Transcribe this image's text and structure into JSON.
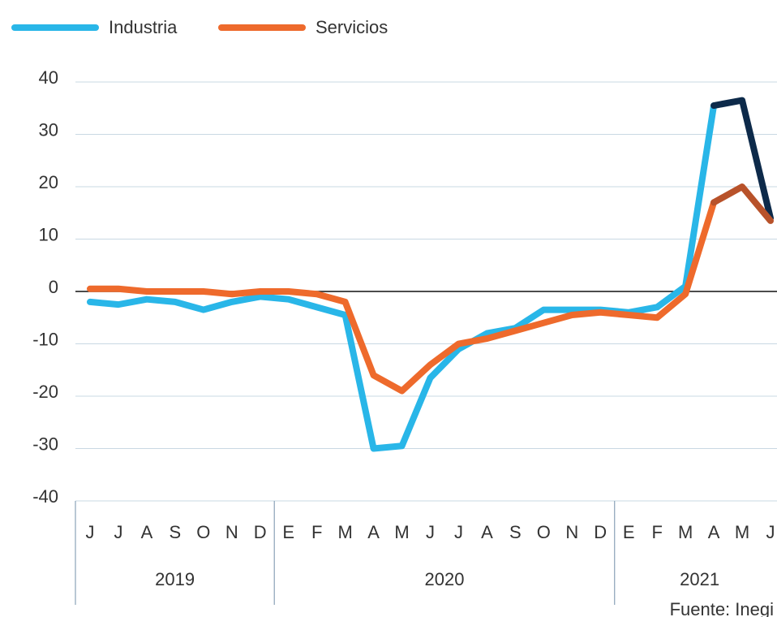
{
  "chart_data": {
    "type": "line",
    "categories": [
      "J",
      "J",
      "A",
      "S",
      "O",
      "N",
      "D",
      "E",
      "F",
      "M",
      "A",
      "M",
      "J",
      "J",
      "A",
      "S",
      "O",
      "N",
      "D",
      "E",
      "F",
      "M",
      "A",
      "M",
      "J"
    ],
    "year_groups": [
      {
        "label": "2019",
        "count": 7
      },
      {
        "label": "2020",
        "count": 12
      },
      {
        "label": "2021",
        "count": 6
      }
    ],
    "series": [
      {
        "name": "Industria",
        "color": "#29b6e8",
        "highlight_color": "#0d2a4a",
        "values": [
          -2,
          -2.5,
          -1.5,
          -2,
          -3.5,
          -2,
          -1,
          -1.5,
          -3,
          -4.5,
          -30,
          -29.5,
          -16.5,
          -11,
          -8,
          -7,
          -3.5,
          -3.5,
          -3.5,
          -4,
          -3,
          1,
          35.5,
          36.5,
          14
        ]
      },
      {
        "name": "Servicios",
        "color": "#ee6a2c",
        "highlight_color": "#b8522a",
        "values": [
          0.5,
          0.5,
          0,
          0,
          0,
          -0.5,
          0,
          0,
          -0.5,
          -2,
          -16,
          -19,
          -14,
          -10,
          -9,
          -7.5,
          -6,
          -4.5,
          -4,
          -4.5,
          -5,
          -0.5,
          17,
          20,
          13.5
        ]
      }
    ],
    "highlight_from": 22,
    "ylim": [
      -40,
      40
    ],
    "yticks": [
      -40,
      -30,
      -20,
      -10,
      0,
      10,
      20,
      30,
      40
    ],
    "grid": true,
    "source": "Fuente: Inegi"
  }
}
